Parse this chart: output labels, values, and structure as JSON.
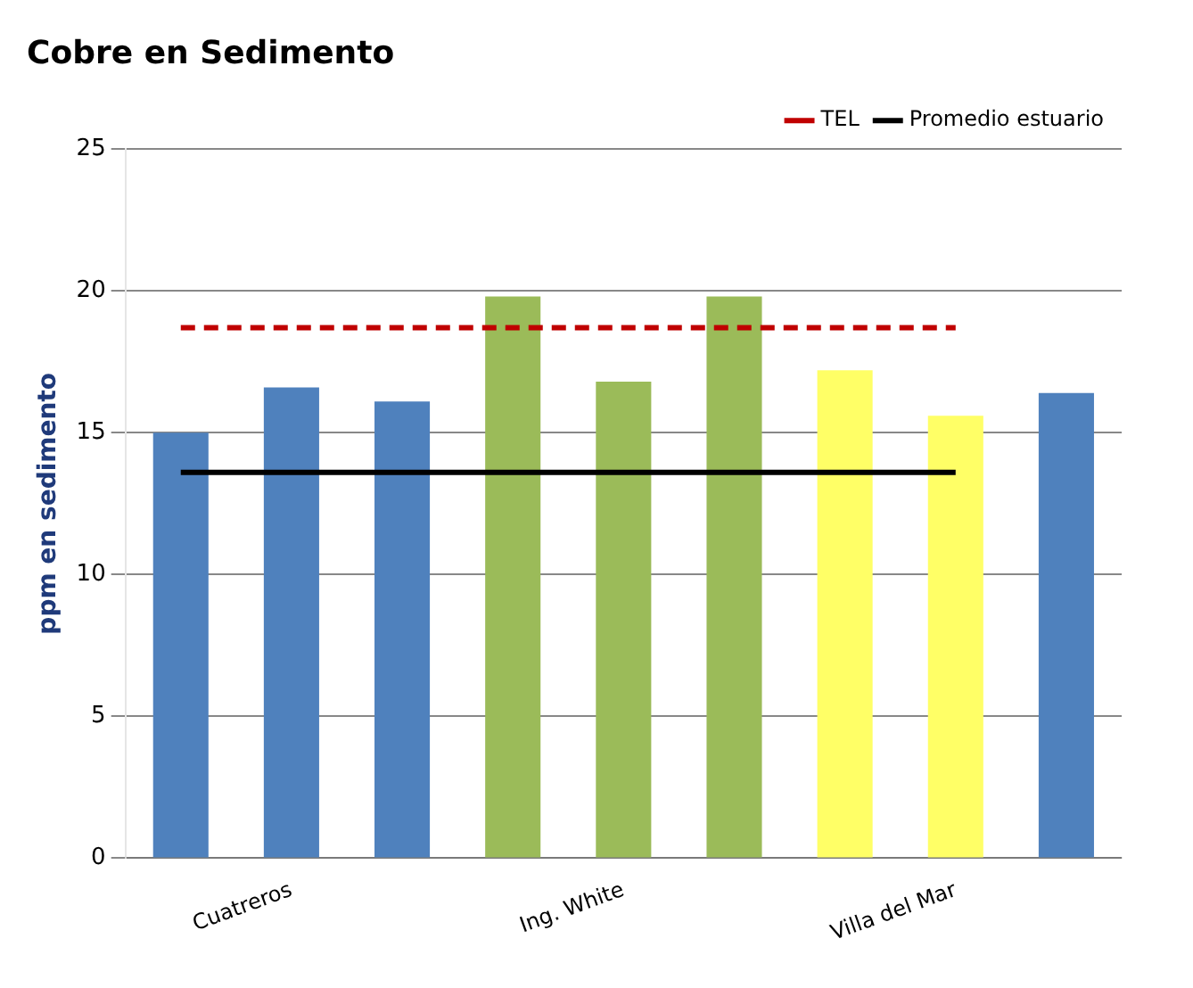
{
  "chart_data": {
    "type": "bar",
    "title": "Cobre en Sedimento",
    "ylabel": "ppm en sedimento",
    "categories": [
      null,
      "Cuatreros",
      null,
      null,
      "Ing. White",
      null,
      null,
      "Villa del Mar",
      null
    ],
    "series": [
      {
        "colors": [
          "#4f81bd",
          "#4f81bd",
          "#4f81bd",
          "#9bbb59",
          "#9bbb59",
          "#9bbb59",
          "#ffff66",
          "#ffff66",
          "#4f81bd"
        ],
        "values": [
          15.0,
          16.6,
          16.1,
          19.8,
          16.8,
          19.8,
          17.2,
          15.6,
          16.4
        ]
      },
      {
        "type": "line",
        "name": "TEL",
        "color": "#c00000",
        "line_style": "dashed",
        "values": [
          18.7,
          18.7,
          18.7,
          18.7,
          18.7,
          18.7,
          18.7,
          18.7,
          null
        ]
      },
      {
        "type": "line",
        "name": "Promedio estuario",
        "color": "#000000",
        "line_style": "solid",
        "values": [
          13.6,
          13.6,
          13.6,
          13.6,
          13.6,
          13.6,
          13.6,
          13.6,
          null
        ]
      }
    ],
    "ylim": [
      0,
      25
    ],
    "yticks": [
      0,
      5,
      10,
      15,
      20,
      25
    ],
    "grid": "y",
    "legend": "top right",
    "marker": "none"
  }
}
